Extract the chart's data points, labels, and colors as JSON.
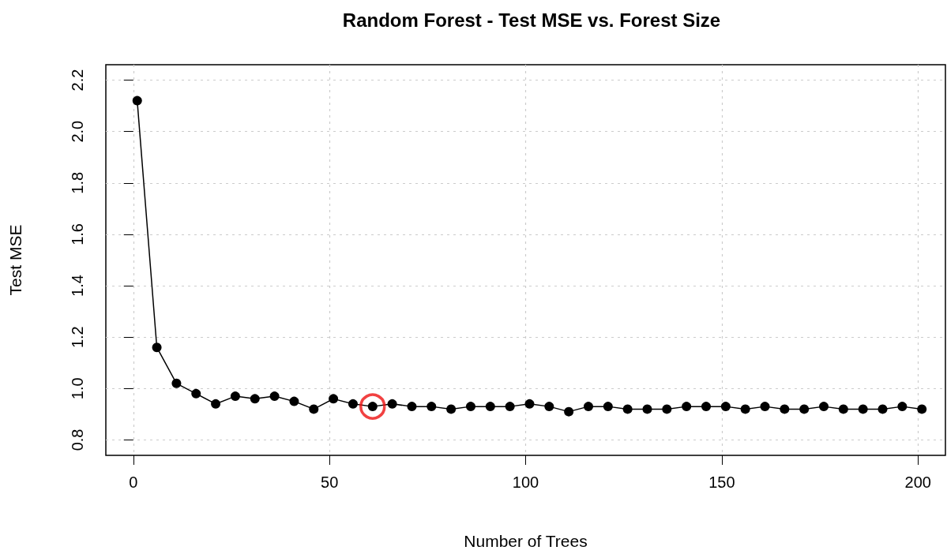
{
  "chart_data": {
    "type": "line",
    "title": "Random Forest - Test MSE vs. Forest Size",
    "xlabel": "Number of Trees",
    "ylabel": "Test MSE",
    "x": [
      1,
      6,
      11,
      16,
      21,
      26,
      31,
      36,
      41,
      46,
      51,
      56,
      61,
      66,
      71,
      76,
      81,
      86,
      91,
      96,
      101,
      106,
      111,
      116,
      121,
      126,
      131,
      136,
      141,
      146,
      151,
      156,
      161,
      166,
      171,
      176,
      181,
      186,
      191,
      196,
      201
    ],
    "series": [
      {
        "color": "#000000",
        "values": [
          2.12,
          1.16,
          1.02,
          0.98,
          0.94,
          0.97,
          0.96,
          0.97,
          0.95,
          0.92,
          0.96,
          0.94,
          0.93,
          0.94,
          0.93,
          0.93,
          0.92,
          0.93,
          0.93,
          0.93,
          0.94,
          0.93,
          0.91,
          0.93,
          0.93,
          0.92,
          0.92,
          0.92,
          0.93,
          0.93,
          0.93,
          0.92,
          0.93,
          0.92,
          0.92,
          0.93,
          0.92,
          0.92,
          0.92,
          0.93,
          0.92
        ]
      },
      {
        "type": "scatter",
        "x": [
          61
        ],
        "color": "#ee1111",
        "values": [
          0.93
        ]
      }
    ],
    "xlim": [
      -7,
      207
    ],
    "xticks": [
      0,
      50,
      100,
      150,
      200
    ],
    "ylim": [
      0.74,
      2.26
    ],
    "yticks": [
      0.8,
      {
        "value": 1,
        "label": "1.0"
      },
      1.2,
      1.4,
      1.6,
      1.8,
      {
        "value": 2,
        "label": "2.0"
      },
      2.2
    ],
    "grid": true,
    "marker": "circle",
    "line_style": "solid"
  }
}
